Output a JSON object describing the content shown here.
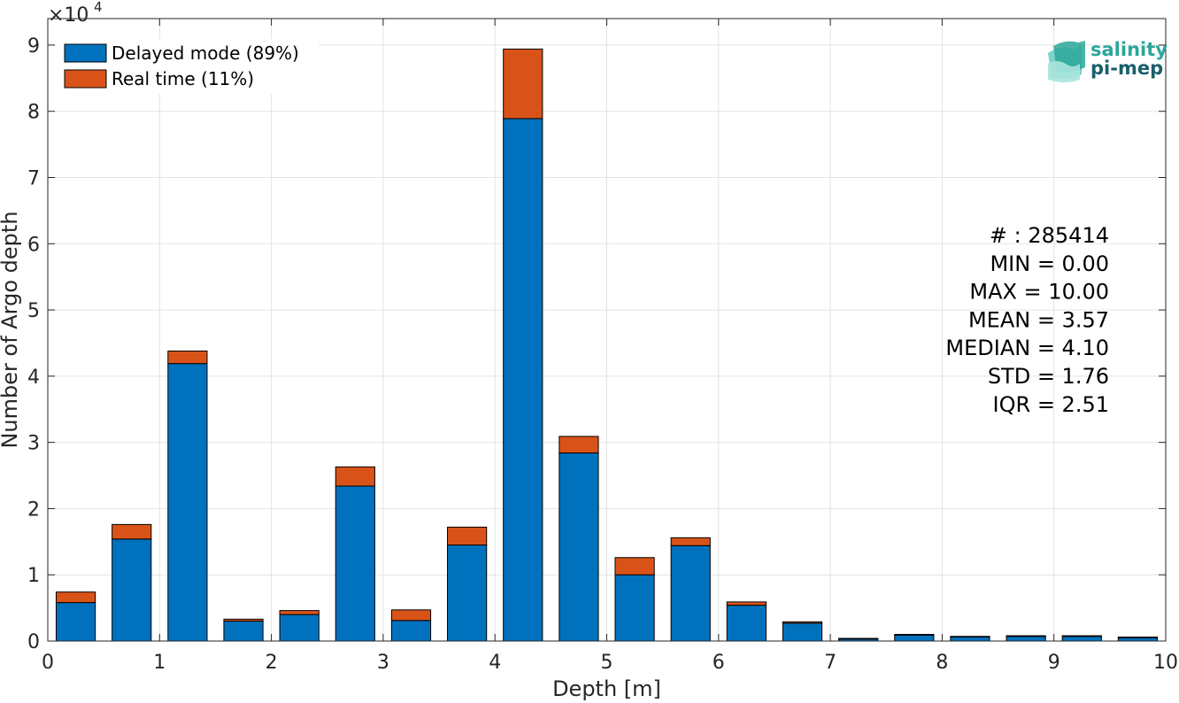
{
  "chart_data": {
    "type": "bar",
    "stacked": true,
    "xlabel": "Depth [m]",
    "ylabel": "Number of Argo depth",
    "y_multiplier_label": "×10",
    "y_multiplier_exponent": "4",
    "xlim": [
      0,
      10
    ],
    "ylim": [
      0,
      94000
    ],
    "grid": true,
    "legend_position": "top-left",
    "x_ticks": [
      0,
      1,
      2,
      3,
      4,
      5,
      6,
      7,
      8,
      9,
      10
    ],
    "y_ticks": [
      0,
      10000,
      20000,
      30000,
      40000,
      50000,
      60000,
      70000,
      80000,
      90000
    ],
    "y_tick_labels": [
      "0",
      "1",
      "2",
      "3",
      "4",
      "5",
      "6",
      "7",
      "8",
      "9"
    ],
    "bin_centers": [
      0.25,
      0.75,
      1.25,
      1.75,
      2.25,
      2.75,
      3.25,
      3.75,
      4.25,
      4.75,
      5.25,
      5.75,
      6.25,
      6.75,
      7.25,
      7.75,
      8.25,
      8.75,
      9.25,
      9.75
    ],
    "bar_width": 0.35,
    "series": [
      {
        "name": "Delayed mode (89%)",
        "color": "#0072BD",
        "values": [
          5800,
          15400,
          41900,
          3000,
          4000,
          23400,
          3100,
          14500,
          78900,
          28400,
          10000,
          14400,
          5400,
          2700,
          300,
          900,
          600,
          700,
          700,
          500
        ]
      },
      {
        "name": "Real time (11%)",
        "color": "#D95319",
        "values": [
          1600,
          2200,
          1900,
          300,
          600,
          2900,
          1600,
          2700,
          10500,
          2500,
          2600,
          1200,
          500,
          200,
          100,
          100,
          100,
          100,
          100,
          100
        ]
      }
    ],
    "stats": [
      "# : 285414",
      "MIN = 0.00",
      "MAX =  10.00",
      "MEAN = 3.57",
      "MEDIAN = 4.10",
      "STD = 1.76",
      "IQR = 2.51"
    ]
  },
  "logo": {
    "line1": "salinity",
    "line2": "pi-mep",
    "color": "#2aa79a"
  }
}
